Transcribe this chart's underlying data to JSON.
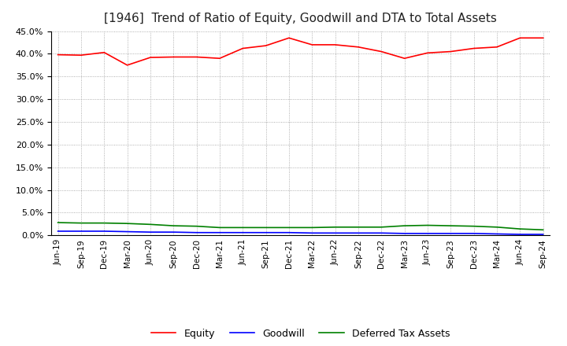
{
  "title": "[1946]  Trend of Ratio of Equity, Goodwill and DTA to Total Assets",
  "x_labels": [
    "Jun-19",
    "Sep-19",
    "Dec-19",
    "Mar-20",
    "Jun-20",
    "Sep-20",
    "Dec-20",
    "Mar-21",
    "Jun-21",
    "Sep-21",
    "Dec-21",
    "Mar-22",
    "Jun-22",
    "Sep-22",
    "Dec-22",
    "Mar-23",
    "Jun-23",
    "Sep-23",
    "Dec-23",
    "Mar-24",
    "Jun-24",
    "Sep-24"
  ],
  "equity": [
    39.8,
    39.7,
    40.3,
    37.5,
    39.2,
    39.3,
    39.3,
    39.0,
    41.2,
    41.8,
    43.5,
    42.0,
    42.0,
    41.5,
    40.5,
    39.0,
    40.2,
    40.5,
    41.2,
    41.5,
    43.5,
    43.5
  ],
  "goodwill": [
    0.9,
    0.9,
    0.9,
    0.8,
    0.7,
    0.7,
    0.6,
    0.6,
    0.6,
    0.6,
    0.6,
    0.5,
    0.5,
    0.5,
    0.5,
    0.4,
    0.4,
    0.4,
    0.4,
    0.3,
    0.2,
    0.2
  ],
  "dta": [
    2.8,
    2.7,
    2.7,
    2.6,
    2.4,
    2.1,
    2.0,
    1.7,
    1.7,
    1.7,
    1.7,
    1.7,
    1.8,
    1.8,
    1.8,
    2.1,
    2.2,
    2.1,
    2.0,
    1.8,
    1.4,
    1.2
  ],
  "equity_color": "#ff0000",
  "goodwill_color": "#0000ff",
  "dta_color": "#008000",
  "ylim": [
    0,
    45
  ],
  "yticks": [
    0,
    5,
    10,
    15,
    20,
    25,
    30,
    35,
    40,
    45
  ],
  "background_color": "#ffffff",
  "plot_bg_color": "#ffffff",
  "grid_color": "#999999",
  "title_fontsize": 11,
  "legend_labels": [
    "Equity",
    "Goodwill",
    "Deferred Tax Assets"
  ]
}
